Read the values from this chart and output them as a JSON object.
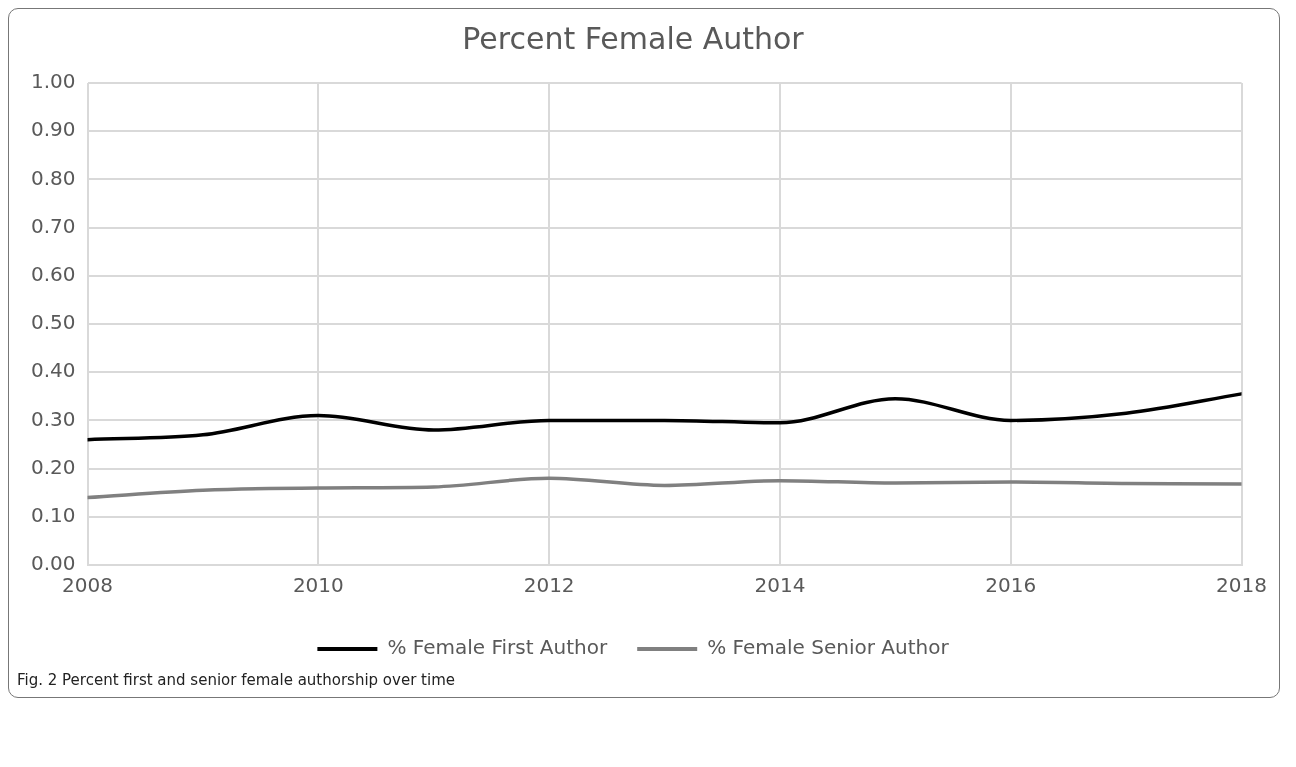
{
  "chart_data": {
    "type": "line",
    "title": "Percent Female Author",
    "x": [
      2008,
      2009,
      2010,
      2011,
      2012,
      2013,
      2014,
      2015,
      2016,
      2017,
      2018
    ],
    "series": [
      {
        "name": "% Female First Author",
        "color": "#000000",
        "values": [
          0.26,
          0.27,
          0.31,
          0.28,
          0.3,
          0.3,
          0.295,
          0.345,
          0.3,
          0.315,
          0.355
        ]
      },
      {
        "name": "% Female Senior Author",
        "color": "#808080",
        "values": [
          0.14,
          0.155,
          0.16,
          0.162,
          0.18,
          0.165,
          0.175,
          0.17,
          0.172,
          0.169,
          0.168
        ]
      }
    ],
    "xlim": [
      2008,
      2018
    ],
    "xticks": [
      2008,
      2010,
      2012,
      2014,
      2016,
      2018
    ],
    "ylim": [
      0,
      1
    ],
    "yticks": [
      {
        "value": 0,
        "label": "0.00"
      },
      {
        "value": 0.1,
        "label": "0.10"
      },
      {
        "value": 0.2,
        "label": "0.20"
      },
      {
        "value": 0.3,
        "label": "0.30"
      },
      {
        "value": 0.4,
        "label": "0.40"
      },
      {
        "value": 0.5,
        "label": "0.50"
      },
      {
        "value": 0.6,
        "label": "0.60"
      },
      {
        "value": 0.7,
        "label": "0.70"
      },
      {
        "value": 0.8,
        "label": "0.80"
      },
      {
        "value": 0.9,
        "label": "0.90"
      },
      {
        "value": 1,
        "label": "1.00"
      }
    ],
    "grid": true,
    "legend": "bottom",
    "marker": "none",
    "line_style": "solid",
    "annotations": [
      "Fig. 2  Percent first and senior female authorship over time"
    ]
  }
}
